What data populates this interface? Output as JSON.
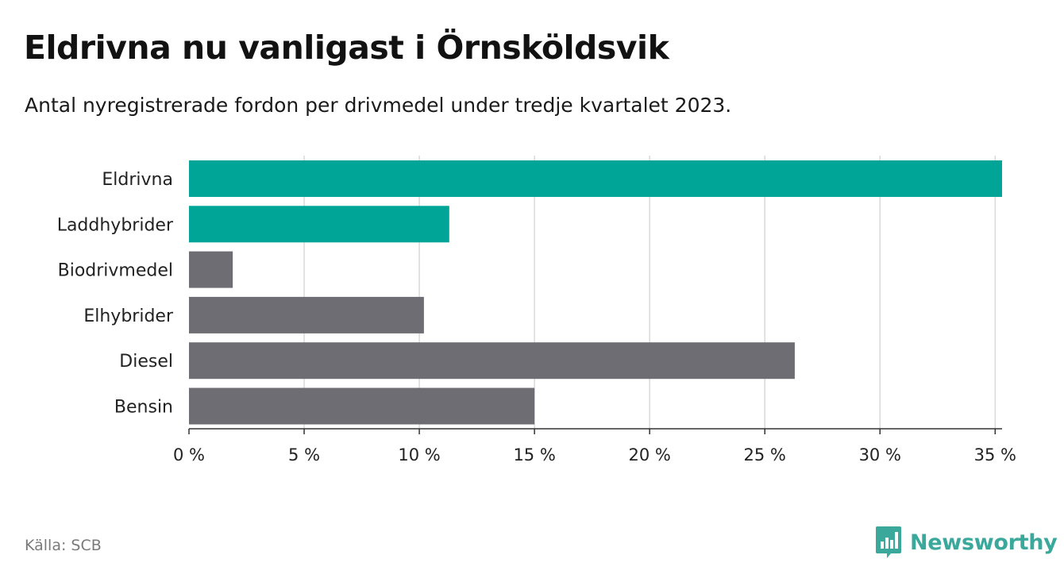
{
  "header": {
    "title": "Eldrivna nu vanligast i Örnsköldsvik",
    "subtitle": "Antal nyregistrerade fordon per drivmedel under tredje kvartalet 2023."
  },
  "footer": {
    "source": "Källa: SCB",
    "brand": "Newsworthy"
  },
  "colors": {
    "highlight": "#00a598",
    "default": "#6e6d73",
    "grid": "#d9d9d9",
    "axis": "#333333",
    "brand": "#3aa89a"
  },
  "chart_data": {
    "type": "bar",
    "orientation": "horizontal",
    "title": "Eldrivna nu vanligast i Örnsköldsvik",
    "subtitle": "Antal nyregistrerade fordon per drivmedel under tredje kvartalet 2023.",
    "categories": [
      "Eldrivna",
      "Laddhybrider",
      "Biodrivmedel",
      "Elhybrider",
      "Diesel",
      "Bensin"
    ],
    "values": [
      35.3,
      11.3,
      1.9,
      10.2,
      26.3,
      15.0
    ],
    "highlighted": [
      true,
      true,
      false,
      false,
      false,
      false
    ],
    "xlim": [
      0,
      35.3
    ],
    "xticks": [
      0,
      5,
      10,
      15,
      20,
      25,
      30,
      35
    ],
    "xtick_labels": [
      "0 %",
      "5 %",
      "10 %",
      "15 %",
      "20 %",
      "25 %",
      "30 %",
      "35 %"
    ],
    "xlabel": "",
    "ylabel": "",
    "grid": true,
    "legend": "none"
  }
}
